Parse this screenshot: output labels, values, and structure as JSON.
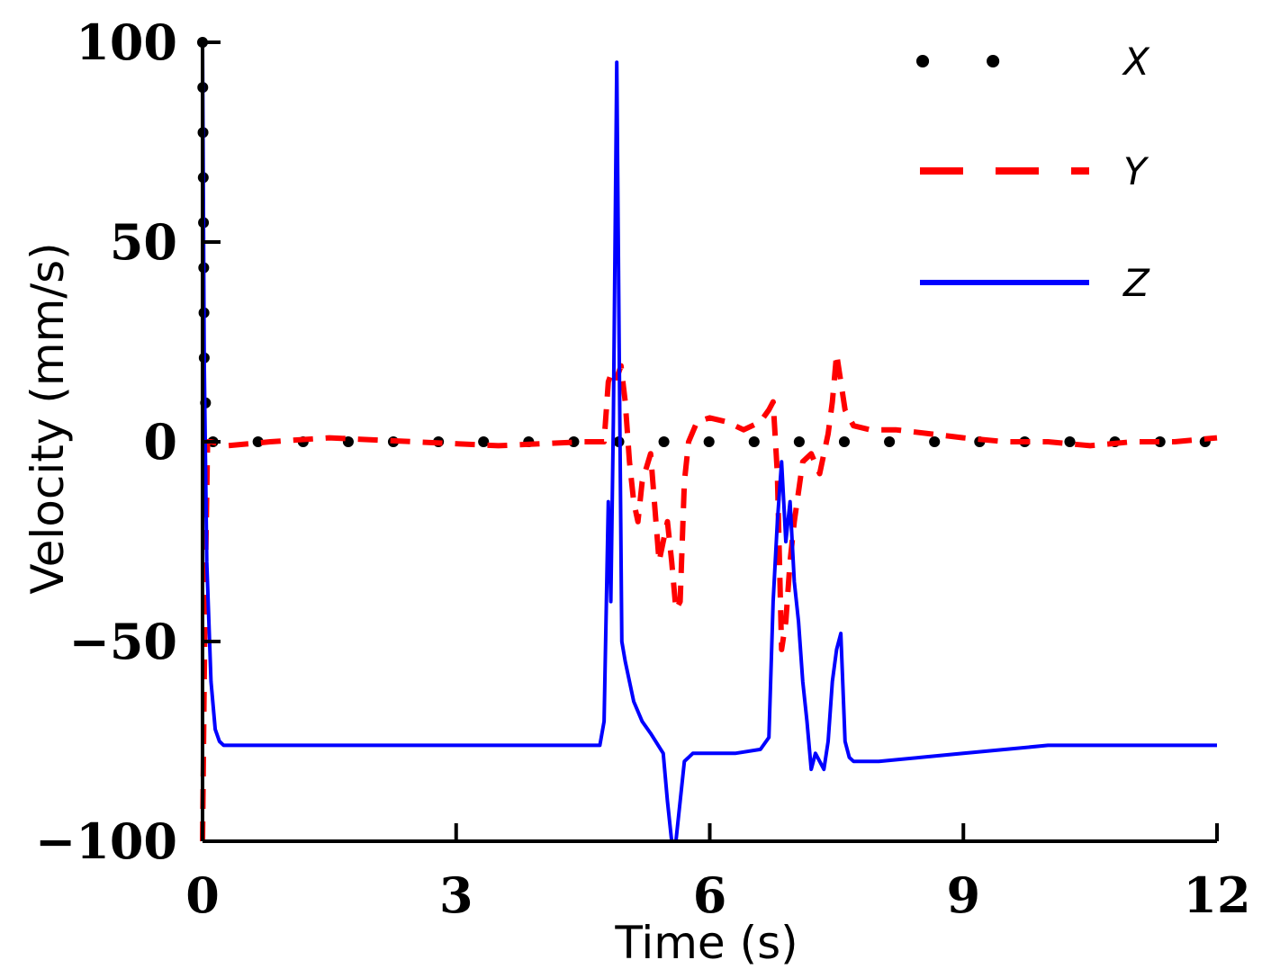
{
  "chart_data": {
    "type": "line",
    "title": "",
    "xlabel": "Time (s)",
    "ylabel": "Velocity (mm/s)",
    "xlim": [
      0,
      12
    ],
    "ylim": [
      -100,
      100
    ],
    "xticks": [
      0,
      3,
      6,
      9,
      12
    ],
    "yticks": [
      -100,
      -50,
      0,
      50,
      100
    ],
    "ytick_labels": [
      "−100",
      "−50",
      "0",
      "50",
      "100"
    ],
    "xtick_labels": [
      "0",
      "3",
      "6",
      "9",
      "12"
    ],
    "grid": false,
    "legend_position": "top-right",
    "series": [
      {
        "name": "X",
        "style": "dotted",
        "color": "#000000",
        "x": [
          0,
          0.02,
          0.05,
          0.5,
          1,
          2,
          3,
          4,
          4.8,
          5.2,
          5.6,
          6,
          7,
          8,
          9,
          10,
          11,
          12
        ],
        "y": [
          100,
          20,
          0,
          0,
          0,
          0,
          0,
          0,
          0,
          0,
          0,
          0,
          0,
          0,
          0,
          0,
          0,
          0
        ]
      },
      {
        "name": "Y",
        "style": "dashed",
        "color": "#ff0000",
        "x": [
          0,
          0.03,
          0.06,
          0.1,
          0.3,
          0.8,
          1.5,
          2.5,
          3.5,
          4.5,
          4.75,
          4.8,
          4.85,
          4.9,
          4.95,
          5.0,
          5.05,
          5.1,
          5.15,
          5.2,
          5.3,
          5.4,
          5.45,
          5.5,
          5.55,
          5.6,
          5.65,
          5.7,
          5.75,
          5.85,
          6.0,
          6.2,
          6.4,
          6.6,
          6.7,
          6.75,
          6.8,
          6.85,
          6.9,
          6.95,
          7.0,
          7.1,
          7.2,
          7.3,
          7.4,
          7.45,
          7.5,
          7.55,
          7.6,
          7.7,
          7.9,
          8.2,
          8.6,
          9.0,
          9.5,
          10.0,
          10.5,
          11.0,
          11.5,
          12.0
        ],
        "y": [
          -100,
          -40,
          0,
          0,
          -1,
          0,
          1,
          0,
          -1,
          0,
          0,
          15,
          18,
          16,
          19,
          10,
          -5,
          -15,
          -20,
          -10,
          -3,
          -30,
          -25,
          -20,
          -30,
          -42,
          -40,
          -10,
          0,
          5,
          6,
          5,
          3,
          5,
          8,
          10,
          -8,
          -52,
          -45,
          -30,
          -20,
          -5,
          -3,
          -8,
          2,
          10,
          22,
          15,
          8,
          4,
          3,
          3,
          2,
          1,
          0,
          0,
          -1,
          0,
          0,
          1
        ]
      },
      {
        "name": "Z",
        "style": "solid",
        "color": "#0000ff",
        "x": [
          0,
          0.02,
          0.05,
          0.1,
          0.15,
          0.2,
          0.25,
          0.3,
          0.5,
          1,
          2,
          3,
          4,
          4.6,
          4.7,
          4.75,
          4.8,
          4.83,
          4.86,
          4.9,
          4.93,
          4.96,
          5.0,
          5.05,
          5.1,
          5.2,
          5.3,
          5.45,
          5.5,
          5.55,
          5.6,
          5.65,
          5.7,
          5.75,
          5.8,
          6.0,
          6.3,
          6.6,
          6.7,
          6.75,
          6.8,
          6.85,
          6.9,
          6.95,
          7.0,
          7.05,
          7.1,
          7.15,
          7.2,
          7.25,
          7.3,
          7.35,
          7.4,
          7.45,
          7.5,
          7.55,
          7.6,
          7.65,
          7.7,
          8.0,
          8.5,
          9.0,
          9.5,
          10.0,
          10.5,
          11.0,
          11.5,
          12.0
        ],
        "y": [
          100,
          20,
          -30,
          -60,
          -72,
          -75,
          -76,
          -76,
          -76,
          -76,
          -76,
          -76,
          -76,
          -76,
          -76,
          -70,
          -15,
          -40,
          5,
          95,
          20,
          -50,
          -55,
          -60,
          -65,
          -70,
          -73,
          -78,
          -90,
          -100,
          -100,
          -90,
          -80,
          -79,
          -78,
          -78,
          -78,
          -77,
          -74,
          -40,
          -20,
          -5,
          -25,
          -15,
          -35,
          -45,
          -60,
          -70,
          -82,
          -78,
          -80,
          -82,
          -75,
          -60,
          -52,
          -48,
          -75,
          -79,
          -80,
          -80,
          -79,
          -78,
          -77,
          -76,
          -76,
          -76,
          -76,
          -76
        ]
      }
    ]
  }
}
